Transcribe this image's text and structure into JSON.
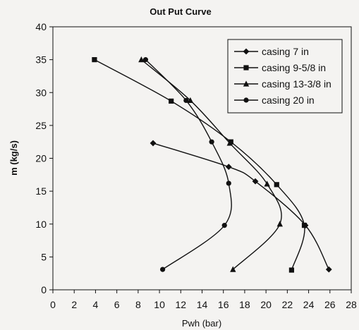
{
  "chart_data": {
    "type": "line",
    "title": "Out Put Curve",
    "xlabel": "Pwh (bar)",
    "ylabel": "m (kg/s)",
    "xlim": [
      0,
      28
    ],
    "ylim": [
      0,
      40
    ],
    "xticks": [
      "0",
      "2",
      "4",
      "6",
      "8",
      "10",
      "12",
      "14",
      "16",
      "18",
      "20",
      "22",
      "24",
      "26",
      "28"
    ],
    "yticks": [
      "0",
      "5",
      "10",
      "15",
      "20",
      "25",
      "30",
      "35",
      "40"
    ],
    "grid": false,
    "legend_position": "top-right",
    "series": [
      {
        "name": "casing 7 in",
        "marker": "diamond",
        "points": [
          [
            9.4,
            22.3
          ],
          [
            16.5,
            18.7
          ],
          [
            19.0,
            16.5
          ],
          [
            23.7,
            9.8
          ],
          [
            25.9,
            3.1
          ]
        ]
      },
      {
        "name": "casing 9-5/8 in",
        "marker": "square",
        "points": [
          [
            3.9,
            35.0
          ],
          [
            11.1,
            28.7
          ],
          [
            16.7,
            22.5
          ],
          [
            21.0,
            16.0
          ],
          [
            23.6,
            9.8
          ],
          [
            22.4,
            3.0
          ]
        ]
      },
      {
        "name": "casing 13-3/8 in",
        "marker": "triangle",
        "points": [
          [
            8.3,
            35.0
          ],
          [
            12.9,
            28.8
          ],
          [
            16.6,
            22.3
          ],
          [
            20.1,
            16.1
          ],
          [
            21.3,
            10.0
          ],
          [
            16.9,
            3.1
          ]
        ]
      },
      {
        "name": "casing 20 in",
        "marker": "circle",
        "points": [
          [
            8.7,
            35.0
          ],
          [
            12.5,
            28.8
          ],
          [
            14.9,
            22.5
          ],
          [
            16.5,
            16.2
          ],
          [
            16.1,
            9.8
          ],
          [
            10.3,
            3.1
          ]
        ]
      }
    ]
  }
}
